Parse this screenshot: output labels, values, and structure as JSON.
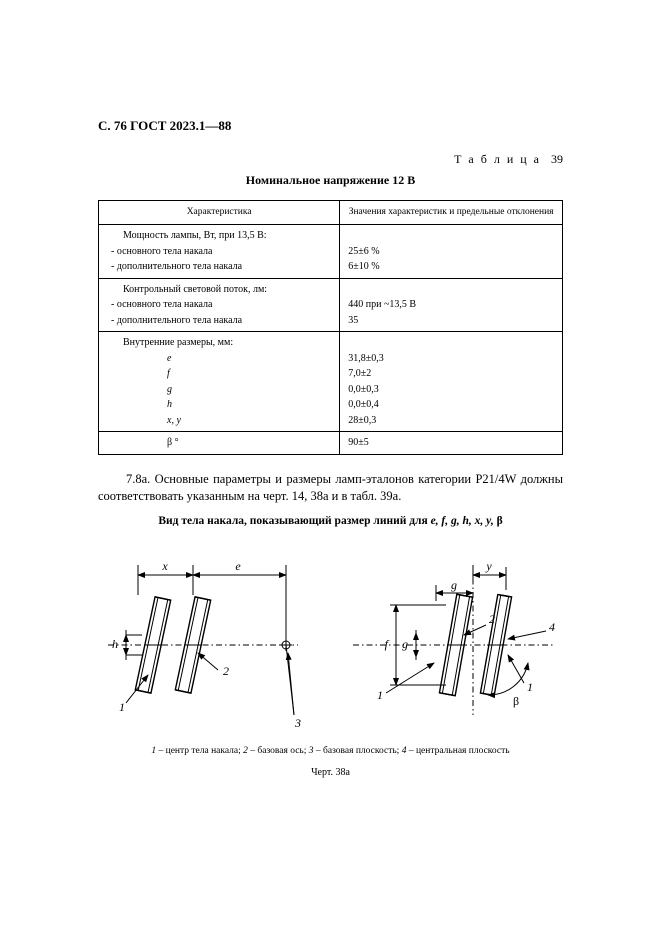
{
  "header": "С. 76 ГОСТ 2023.1—88",
  "tableLabel": {
    "word": "Т а б л и ц а",
    "num": "39"
  },
  "subtitle": "Номинальное напряжение 12 В",
  "columns": {
    "left": "Характеристика",
    "right": "Значения характеристик и предельные отклонения"
  },
  "rows": [
    {
      "section": 1,
      "first": true,
      "l": "Мощность лампы, Вт, при 13,5 В:",
      "lClass": "indent1",
      "r": ""
    },
    {
      "section": 1,
      "l": "- основного тела накала",
      "lClass": "indent-li",
      "r": "25±6 %"
    },
    {
      "section": 1,
      "last": true,
      "l": "- дополнительного тела накала",
      "lClass": "indent-li",
      "r": "6±10 %"
    },
    {
      "section": 2,
      "first": true,
      "l": "Контрольный световой поток, лм:",
      "lClass": "indent1",
      "r": ""
    },
    {
      "section": 2,
      "l": "- основного тела накала",
      "lClass": "indent-li",
      "r": "440  при  ~13,5 В"
    },
    {
      "section": 2,
      "last": true,
      "l": "- дополнительного тела накала",
      "lClass": "indent-li",
      "r": "35"
    },
    {
      "section": 3,
      "first": true,
      "l": "Внутренние размеры, мм:",
      "lClass": "indent1",
      "r": ""
    },
    {
      "section": 3,
      "l": "e",
      "lClass": "center-sym i",
      "r": "31,8±0,3"
    },
    {
      "section": 3,
      "l": "f",
      "lClass": "center-sym i",
      "r": "7,0±2"
    },
    {
      "section": 3,
      "l": "g",
      "lClass": "center-sym i",
      "r": "0,0±0,3"
    },
    {
      "section": 3,
      "l": "h",
      "lClass": "center-sym i",
      "r": "0,0±0,4"
    },
    {
      "section": 3,
      "last": true,
      "l": "x, y",
      "lClass": "center-sym i",
      "r": "28±0,3"
    },
    {
      "section": 4,
      "first": true,
      "last": true,
      "l": "β °",
      "lClass": "center-sym",
      "r": "90±5"
    }
  ],
  "paragraph": "7.8а.  Основные параметры и размеры ламп-эталонов категории P21/4W должны соответствовать указанным на черт. 14, 38а и в табл. 39а.",
  "figTitleParts": {
    "pre": "Вид тела накала, показывающий размер линий для ",
    "vars": "e, f, g, h, x, y, ",
    "beta": "β"
  },
  "legendParts": {
    "p1i": "1",
    "p1": " – центр тела накала; ",
    "p2i": "2",
    "p2": " – базовая ось; ",
    "p3i": "3",
    "p3": " – базовая плоскость; ",
    "p4i": "4",
    "p4": " – центральная плоскость"
  },
  "figNum": "Черт. 38а",
  "svg": {
    "stroke": "#000000",
    "thin": 1.0,
    "med": 1.4,
    "dash": "6 3 1.5 3",
    "labels": {
      "x": "x",
      "e": "e",
      "y": "y",
      "g": "g",
      "h": "h",
      "f": "f",
      "n1": "1",
      "n2": "2",
      "n3": "3",
      "n4": "4",
      "beta": "β"
    }
  }
}
